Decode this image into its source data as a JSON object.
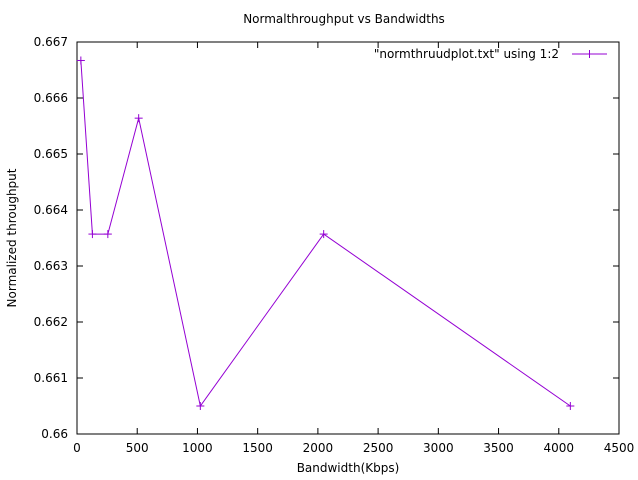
{
  "chart_data": {
    "type": "line",
    "title": "Normalthroughput vs Bandwidths",
    "xlabel": "Bandwidth(Kbps)",
    "ylabel": "Normalized throughput",
    "xlim": [
      0,
      4500
    ],
    "ylim": [
      0.66,
      0.667
    ],
    "xticks": [
      0,
      500,
      1000,
      1500,
      2000,
      2500,
      3000,
      3500,
      4000,
      4500
    ],
    "yticks": [
      0.66,
      0.661,
      0.662,
      0.663,
      0.664,
      0.665,
      0.666,
      0.667
    ],
    "xtick_labels": [
      "0",
      "500",
      "1000",
      "1500",
      "2000",
      "2500",
      "3000",
      "3500",
      "4000",
      "4500"
    ],
    "ytick_labels": [
      "0.66",
      "0.661",
      "0.662",
      "0.663",
      "0.664",
      "0.665",
      "0.666",
      "0.667"
    ],
    "grid": false,
    "legend_position": "top-right",
    "series": [
      {
        "name": "\"normthruudplot.txt\" using 1:2",
        "color": "#9400d3",
        "marker": "plus",
        "x": [
          32,
          128,
          256,
          512,
          1024,
          2048,
          4096
        ],
        "y": [
          0.66667,
          0.66357,
          0.66357,
          0.66564,
          0.6605,
          0.66357,
          0.6605
        ]
      }
    ]
  }
}
